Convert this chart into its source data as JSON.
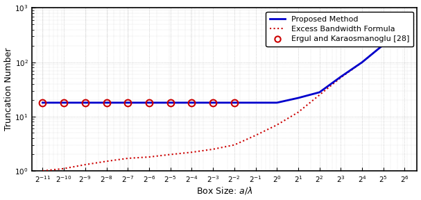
{
  "title": "",
  "xlabel": "Box Size: $a/\\lambda$",
  "ylabel": "Truncation Number",
  "background_color": "#ffffff",
  "grid_color": "#b0b0b0",
  "proposed_color": "#0000cc",
  "excess_color": "#cc0000",
  "ergul_color": "#cc0000",
  "proposed_lw": 2.0,
  "excess_lw": 1.5,
  "legend_entries": [
    "Proposed Method",
    "Excess Bandwidth Formula",
    "Ergul and Karaosmanoglu [28]"
  ],
  "x_exponents": [
    6,
    5,
    4,
    3,
    2,
    1,
    0,
    -1,
    -2,
    -3,
    -4,
    -5,
    -6,
    -7,
    -8,
    -9,
    -10,
    -11
  ],
  "proposed_vals": [
    500,
    210,
    100,
    54,
    28,
    22,
    18,
    18,
    18,
    18,
    18,
    18,
    18,
    18,
    18,
    18,
    18,
    18
  ],
  "excess_vals": [
    500,
    210,
    100,
    52,
    25,
    12,
    7,
    4.5,
    3.0,
    2.5,
    2.2,
    2.0,
    1.8,
    1.7,
    1.5,
    1.3,
    1.1,
    1.0
  ],
  "ergul_exponents": [
    -2,
    -3,
    -4,
    -5,
    -6,
    -7,
    -8,
    -9,
    -10,
    -11
  ],
  "ergul_y": [
    18,
    18,
    18,
    18,
    18,
    18,
    18,
    18,
    18,
    18
  ]
}
